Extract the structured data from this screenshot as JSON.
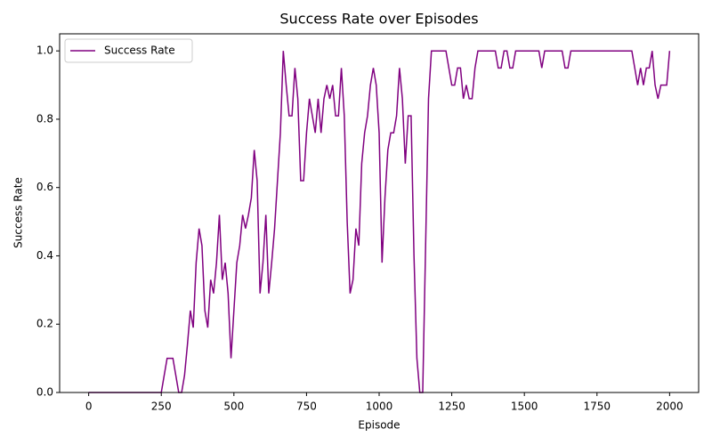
{
  "chart_data": {
    "type": "line",
    "title": "Success Rate over Episodes",
    "xlabel": "Episode",
    "ylabel": "Success Rate",
    "x": [
      0,
      10,
      20,
      30,
      40,
      50,
      60,
      70,
      80,
      90,
      100,
      110,
      120,
      130,
      140,
      150,
      160,
      170,
      180,
      190,
      200,
      210,
      220,
      230,
      240,
      250,
      260,
      270,
      280,
      290,
      300,
      310,
      320,
      330,
      340,
      350,
      360,
      370,
      380,
      390,
      400,
      410,
      420,
      430,
      440,
      450,
      460,
      470,
      480,
      490,
      500,
      510,
      520,
      530,
      540,
      550,
      560,
      570,
      580,
      590,
      600,
      610,
      620,
      630,
      640,
      650,
      660,
      670,
      680,
      690,
      700,
      710,
      720,
      730,
      740,
      750,
      760,
      770,
      780,
      790,
      800,
      810,
      820,
      830,
      840,
      850,
      860,
      870,
      880,
      890,
      900,
      910,
      920,
      930,
      940,
      950,
      960,
      970,
      980,
      990,
      1000,
      1010,
      1020,
      1030,
      1040,
      1050,
      1060,
      1070,
      1080,
      1090,
      1100,
      1110,
      1120,
      1130,
      1140,
      1150,
      1160,
      1170,
      1180,
      1190,
      1200,
      1210,
      1220,
      1230,
      1240,
      1250,
      1260,
      1270,
      1280,
      1290,
      1300,
      1310,
      1320,
      1330,
      1340,
      1350,
      1360,
      1370,
      1380,
      1390,
      1400,
      1410,
      1420,
      1430,
      1440,
      1450,
      1460,
      1470,
      1480,
      1490,
      1500,
      1510,
      1520,
      1530,
      1540,
      1550,
      1560,
      1570,
      1580,
      1590,
      1600,
      1610,
      1620,
      1630,
      1640,
      1650,
      1660,
      1670,
      1680,
      1690,
      1700,
      1710,
      1720,
      1730,
      1740,
      1750,
      1760,
      1770,
      1780,
      1790,
      1800,
      1810,
      1820,
      1830,
      1840,
      1850,
      1860,
      1870,
      1880,
      1890,
      1900,
      1910,
      1920,
      1930,
      1940,
      1950,
      1960,
      1970,
      1980,
      1990,
      2000
    ],
    "series": [
      {
        "name": "Success Rate",
        "color": "#800080",
        "values": [
          0,
          0,
          0,
          0,
          0,
          0,
          0,
          0,
          0,
          0,
          0,
          0,
          0,
          0,
          0,
          0,
          0,
          0,
          0,
          0,
          0,
          0,
          0,
          0,
          0,
          0,
          0.05,
          0.1,
          0.1,
          0.1,
          0.05,
          0,
          0,
          0.05,
          0.14,
          0.24,
          0.19,
          0.38,
          0.48,
          0.43,
          0.24,
          0.19,
          0.33,
          0.29,
          0.38,
          0.52,
          0.33,
          0.38,
          0.29,
          0.1,
          0.24,
          0.38,
          0.43,
          0.52,
          0.48,
          0.52,
          0.57,
          0.71,
          0.62,
          0.29,
          0.38,
          0.52,
          0.29,
          0.38,
          0.48,
          0.62,
          0.76,
          1,
          0.9,
          0.81,
          0.81,
          0.95,
          0.86,
          0.62,
          0.62,
          0.76,
          0.86,
          0.81,
          0.76,
          0.86,
          0.76,
          0.86,
          0.9,
          0.86,
          0.9,
          0.81,
          0.81,
          0.95,
          0.81,
          0.5,
          0.29,
          0.33,
          0.48,
          0.43,
          0.67,
          0.76,
          0.81,
          0.9,
          0.95,
          0.9,
          0.76,
          0.38,
          0.57,
          0.71,
          0.76,
          0.76,
          0.81,
          0.95,
          0.86,
          0.67,
          0.81,
          0.81,
          0.4,
          0.1,
          0,
          0,
          0.43,
          0.86,
          1,
          1,
          1,
          1,
          1,
          1,
          0.95,
          0.9,
          0.9,
          0.95,
          0.95,
          0.86,
          0.9,
          0.86,
          0.86,
          0.95,
          1,
          1,
          1,
          1,
          1,
          1,
          1,
          0.95,
          0.95,
          1,
          1,
          0.95,
          0.95,
          1,
          1,
          1,
          1,
          1,
          1,
          1,
          1,
          1,
          0.95,
          1,
          1,
          1,
          1,
          1,
          1,
          1,
          0.95,
          0.95,
          1,
          1,
          1,
          1,
          1,
          1,
          1,
          1,
          1,
          1,
          1,
          1,
          1,
          1,
          1,
          1,
          1,
          1,
          1,
          1,
          1,
          1,
          0.95,
          0.9,
          0.95,
          0.9,
          0.95,
          0.95,
          1,
          0.9,
          0.86,
          0.9,
          0.9,
          0.9,
          1
        ]
      }
    ],
    "xlim": [
      -100,
      2100
    ],
    "ylim": [
      0,
      1.05
    ],
    "xticks": [
      0,
      250,
      500,
      750,
      1000,
      1250,
      1500,
      1750,
      2000
    ],
    "yticks": [
      {
        "value": 0,
        "label": "0.0"
      },
      0.2,
      0.4,
      0.6,
      0.8,
      {
        "value": 1,
        "label": "1.0"
      }
    ],
    "legend": "upper left"
  }
}
